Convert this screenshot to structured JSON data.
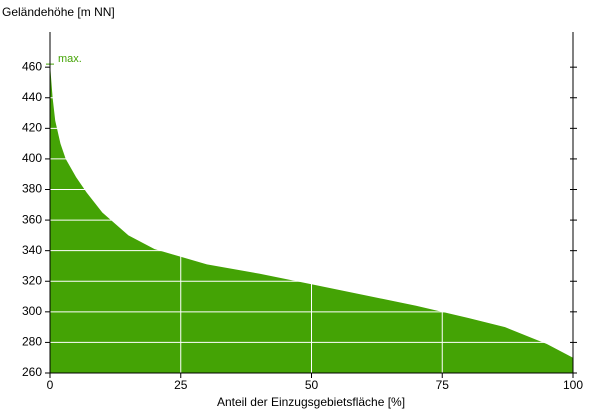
{
  "chart_data": {
    "type": "area",
    "y_label": "Geländehöhe [m NN]",
    "x_label": "Anteil der Einzugsgebietsfläche [%]",
    "annotation": "max.",
    "color": "#44a305",
    "x": [
      0,
      0.5,
      1,
      2,
      3,
      5,
      7,
      10,
      15,
      20,
      25,
      30,
      40,
      50,
      60,
      70,
      75,
      80,
      87,
      95,
      100
    ],
    "values": [
      462,
      440,
      425,
      410,
      400,
      388,
      378,
      365,
      350,
      341,
      336,
      331,
      325,
      318,
      311,
      304,
      300,
      296,
      290,
      279,
      270
    ],
    "xlim": [
      0,
      100
    ],
    "xticks": [
      0,
      25,
      50,
      75,
      100
    ],
    "ylim": [
      260,
      483
    ],
    "yticks": [
      260,
      280,
      300,
      320,
      340,
      360,
      380,
      400,
      420,
      440,
      460
    ],
    "grid": true
  }
}
